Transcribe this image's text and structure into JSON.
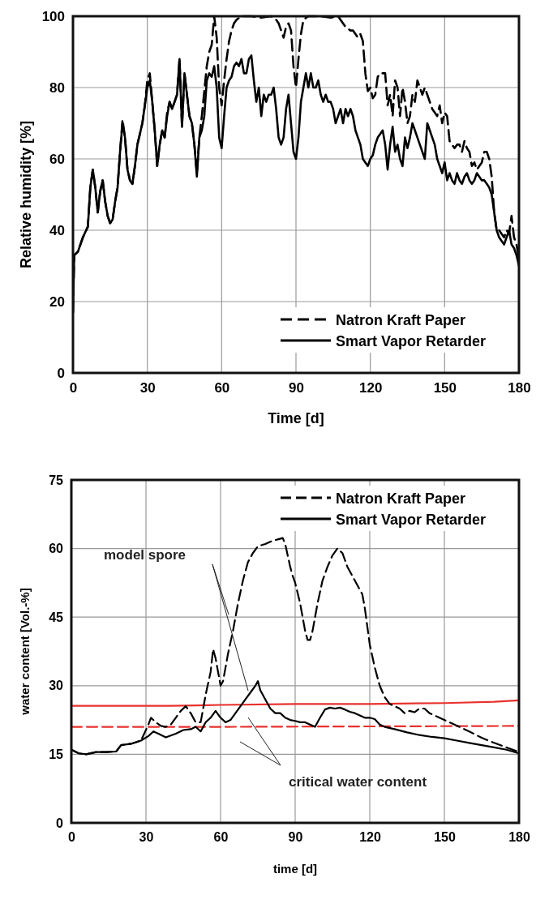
{
  "chart_data": [
    {
      "type": "line",
      "xlabel": "Time [d]",
      "ylabel": "Relative humidity [%]",
      "xlim": [
        0,
        180
      ],
      "ylim": [
        0,
        100
      ],
      "xticks": [
        0,
        30,
        60,
        90,
        120,
        150,
        180
      ],
      "yticks": [
        0,
        20,
        40,
        60,
        80,
        100
      ],
      "grid": true,
      "legend": "bottom right",
      "series": [
        {
          "name": "Natron Kraft Paper",
          "color": "#000000",
          "line_style": "dashed",
          "x": [
            0,
            0.5,
            2,
            4,
            6,
            7,
            8,
            9,
            10,
            11,
            12,
            13,
            14,
            15,
            16,
            17,
            18,
            19,
            20,
            21,
            22,
            23,
            24,
            25,
            26,
            27,
            28,
            29,
            30,
            31,
            32,
            33,
            34,
            35,
            36,
            37,
            38,
            39,
            40,
            41,
            42,
            43,
            44,
            45,
            46,
            47,
            48,
            49,
            50,
            51,
            52,
            54,
            55,
            56,
            57,
            58,
            59,
            60,
            61,
            62,
            63,
            64,
            65,
            66,
            68,
            72,
            76,
            80,
            82,
            83,
            84,
            85,
            86,
            87,
            88,
            89,
            90,
            91,
            92,
            93,
            95,
            100,
            104,
            107,
            108,
            110,
            112,
            113,
            115,
            116,
            117,
            118,
            119,
            120,
            121,
            122,
            123,
            124,
            126,
            127,
            128,
            129,
            130,
            131,
            132,
            133,
            134,
            135,
            136,
            137,
            138,
            139,
            140,
            141,
            142,
            143,
            144,
            145,
            146,
            147,
            148,
            149,
            150,
            151,
            152,
            153,
            154,
            155,
            156,
            157,
            158,
            159,
            160,
            161,
            162,
            163,
            164,
            165,
            166,
            167,
            168,
            169,
            170,
            171,
            172,
            173,
            174,
            175,
            176,
            177,
            178,
            179,
            180
          ],
          "values": [
            17,
            33,
            34,
            38,
            41,
            52,
            57,
            52,
            45,
            51,
            54,
            48,
            44,
            42,
            43,
            48,
            52,
            62,
            71,
            66,
            57,
            54,
            53,
            58,
            64,
            67,
            70,
            75,
            82,
            84,
            76,
            68,
            58,
            64,
            68,
            66,
            73,
            76,
            74,
            76,
            78,
            88,
            69,
            84,
            78,
            72,
            70,
            64,
            56,
            66,
            72,
            86,
            90,
            92,
            100,
            94,
            80,
            75,
            82,
            88,
            93,
            96,
            98,
            99,
            100,
            100,
            99.6,
            100,
            99,
            98,
            96,
            94,
            97,
            98,
            96,
            86,
            80,
            88,
            95,
            99,
            100,
            100,
            99.6,
            100,
            99,
            97,
            96,
            96,
            94,
            95,
            93,
            84,
            79,
            80,
            77,
            78,
            83,
            84,
            84,
            75,
            78,
            72,
            82,
            80,
            72,
            80,
            76,
            70,
            72,
            78,
            76,
            82,
            80,
            78,
            80,
            78,
            76,
            74,
            73,
            72,
            75,
            70,
            73,
            72,
            65,
            64,
            63,
            64,
            64,
            62,
            65,
            63,
            62,
            58,
            59,
            57,
            58,
            59,
            62,
            62,
            60,
            55,
            45,
            40,
            40,
            39,
            38,
            40,
            39,
            44,
            38,
            36,
            32
          ]
        },
        {
          "name": "Smart Vapor Retarder",
          "color": "#000000",
          "line_style": "solid",
          "x": [
            0,
            0.5,
            2,
            4,
            6,
            7,
            8,
            9,
            10,
            11,
            12,
            13,
            14,
            15,
            16,
            17,
            18,
            19,
            20,
            21,
            22,
            23,
            24,
            25,
            26,
            27,
            28,
            29,
            30,
            31,
            32,
            33,
            34,
            35,
            36,
            37,
            38,
            39,
            40,
            41,
            42,
            43,
            44,
            45,
            46,
            47,
            48,
            49,
            50,
            51,
            52,
            53,
            54,
            55,
            56,
            57,
            58,
            59,
            60,
            61,
            62,
            63,
            64,
            65,
            66,
            67,
            68,
            69,
            70,
            71,
            72,
            73,
            74,
            75,
            76,
            77,
            78,
            79,
            80,
            81,
            82,
            83,
            84,
            85,
            86,
            87,
            88,
            89,
            90,
            91,
            92,
            93,
            94,
            95,
            96,
            97,
            98,
            99,
            100,
            101,
            102,
            103,
            104,
            105,
            106,
            107,
            108,
            109,
            110,
            111,
            112,
            113,
            114,
            115,
            116,
            117,
            118,
            119,
            120,
            121,
            122,
            123,
            124,
            125,
            126,
            127,
            128,
            129,
            130,
            131,
            132,
            133,
            134,
            135,
            136,
            137,
            138,
            139,
            140,
            141,
            142,
            143,
            144,
            145,
            146,
            147,
            148,
            149,
            150,
            151,
            152,
            153,
            154,
            155,
            156,
            157,
            158,
            159,
            160,
            161,
            162,
            163,
            164,
            165,
            166,
            167,
            168,
            169,
            170,
            171,
            172,
            173,
            174,
            175,
            176,
            177,
            178,
            179,
            180
          ],
          "values": [
            17,
            33,
            34,
            38,
            41,
            52,
            57,
            52,
            45,
            51,
            54,
            48,
            44,
            42,
            43,
            48,
            52,
            62,
            70,
            66,
            57,
            54,
            53,
            58,
            64,
            67,
            70,
            75,
            80,
            82,
            76,
            68,
            58,
            64,
            68,
            66,
            72,
            76,
            74,
            76,
            78,
            88,
            69,
            84,
            78,
            72,
            70,
            64,
            55,
            66,
            68,
            72,
            82,
            84,
            83,
            86,
            80,
            66,
            63,
            72,
            80,
            82,
            83,
            86,
            87,
            86,
            88,
            84,
            84,
            88,
            89,
            82,
            76,
            80,
            72,
            78,
            76,
            78,
            78,
            80,
            74,
            66,
            64,
            66,
            74,
            78,
            70,
            62,
            60,
            66,
            76,
            80,
            84,
            80,
            84,
            80,
            80,
            82,
            78,
            76,
            78,
            76,
            76,
            74,
            70,
            72,
            74,
            70,
            74,
            72,
            74,
            72,
            68,
            66,
            64,
            60,
            59,
            58,
            60,
            61,
            64,
            66,
            67,
            68,
            64,
            57,
            64,
            69,
            62,
            64,
            60,
            58,
            66,
            63,
            66,
            70,
            68,
            66,
            64,
            62,
            60,
            70,
            68,
            66,
            64,
            60,
            58,
            56,
            59,
            54,
            56,
            54,
            53,
            56,
            54,
            53,
            55,
            56,
            54,
            53,
            54,
            56,
            55,
            54,
            54,
            53,
            52,
            50,
            45,
            40,
            38,
            37,
            36,
            38,
            40,
            36,
            35,
            33,
            30
          ]
        }
      ]
    },
    {
      "type": "line",
      "xlabel": "time [d]",
      "ylabel": "water content [Vol.-%]",
      "xlim": [
        0,
        180
      ],
      "ylim": [
        0,
        75
      ],
      "xticks": [
        0,
        30,
        60,
        90,
        120,
        150,
        180
      ],
      "yticks": [
        0,
        15,
        30,
        45,
        60,
        75
      ],
      "grid": true,
      "legend": "top right",
      "annotations": [
        "model spore",
        "critical water content"
      ],
      "series": [
        {
          "name": "Natron Kraft Paper",
          "color": "#000000",
          "line_style": "dashed",
          "x": [
            0,
            3,
            6,
            10,
            14,
            18,
            20,
            24,
            28,
            31,
            32,
            34,
            36,
            38,
            40,
            42,
            44,
            46,
            48,
            50,
            52,
            54,
            56,
            57,
            58,
            60,
            61,
            63,
            65,
            67,
            69,
            71,
            73,
            75,
            78,
            80,
            83,
            85,
            86,
            88,
            89,
            90,
            92,
            94,
            95,
            96,
            97,
            99,
            101,
            103,
            105,
            107,
            109,
            111,
            113,
            115,
            117,
            118,
            120,
            122,
            124,
            126,
            128,
            130,
            132,
            134,
            136,
            138,
            140,
            142,
            144,
            148,
            152,
            156,
            160,
            165,
            170,
            175,
            180
          ],
          "values": [
            16,
            15.2,
            15,
            15.5,
            15.5,
            15.6,
            17,
            17.3,
            18,
            21.5,
            23,
            22,
            21.2,
            21,
            21.5,
            23,
            24.5,
            25.5,
            24,
            22,
            22,
            28,
            33,
            38,
            36,
            30,
            31,
            37,
            42,
            48,
            53,
            57,
            59,
            60.5,
            61,
            61.5,
            62,
            62.3,
            61,
            56,
            54,
            52.5,
            48,
            42,
            40,
            40,
            42,
            48,
            53,
            56,
            58.5,
            60,
            59,
            56,
            54,
            52,
            50,
            47,
            39,
            34,
            30,
            27.5,
            26,
            25.5,
            25,
            24,
            24.5,
            24.2,
            25,
            25,
            24,
            23,
            22,
            21,
            20,
            18.6,
            17.5,
            16.5,
            15.5
          ]
        },
        {
          "name": "Smart Vapor Retarder",
          "color": "#000000",
          "line_style": "solid",
          "x": [
            0,
            3,
            6,
            10,
            14,
            18,
            20,
            24,
            28,
            31,
            33,
            35,
            38,
            42,
            45,
            48,
            50,
            52,
            54,
            56,
            58,
            60,
            62,
            64,
            66,
            68,
            70,
            72,
            74,
            75,
            76,
            78,
            80,
            82,
            84,
            86,
            88,
            90,
            92,
            94,
            96,
            98,
            100,
            102,
            104,
            106,
            108,
            110,
            112,
            114,
            116,
            118,
            120,
            122,
            124,
            126,
            130,
            135,
            140,
            145,
            150,
            155,
            160,
            165,
            170,
            175,
            180
          ],
          "values": [
            16,
            15.2,
            15,
            15.5,
            15.5,
            15.6,
            17,
            17.3,
            18,
            19,
            20,
            19.5,
            18.7,
            19.5,
            20.3,
            20.5,
            21,
            20,
            22,
            23,
            24.5,
            23,
            22,
            22.5,
            24,
            25.5,
            27,
            28.5,
            30,
            31,
            29,
            27,
            25,
            24,
            24,
            23,
            22.5,
            22.3,
            22,
            22,
            21.5,
            21,
            23,
            24.8,
            25.2,
            25,
            25.2,
            24.8,
            24.3,
            24,
            23.5,
            23,
            23,
            22.7,
            21.5,
            21,
            20.5,
            19.8,
            19.2,
            18.8,
            18.5,
            18,
            17.5,
            17,
            16.5,
            16,
            15.2
          ]
        },
        {
          "color": "#e8312d",
          "line_style": "solid",
          "x": [
            0,
            40,
            60,
            90,
            120,
            150,
            170,
            180
          ],
          "values": [
            25.6,
            25.6,
            25.8,
            26,
            26,
            26.2,
            26.5,
            26.8
          ]
        },
        {
          "color": "#e8312d",
          "line_style": "dashed",
          "x": [
            0,
            60,
            120,
            180
          ],
          "values": [
            21,
            21,
            21.1,
            21.2
          ]
        }
      ]
    }
  ]
}
